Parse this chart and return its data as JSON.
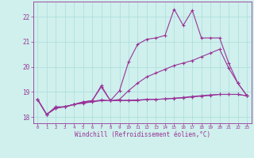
{
  "xlabel": "Windchill (Refroidissement éolien,°C)",
  "bg_color": "#cff0ec",
  "grid_color": "#aadddd",
  "line_color": "#993399",
  "xlim": [
    -0.5,
    23.5
  ],
  "ylim": [
    17.75,
    22.6
  ],
  "xticks": [
    0,
    1,
    2,
    3,
    4,
    5,
    6,
    7,
    8,
    9,
    10,
    11,
    12,
    13,
    14,
    15,
    16,
    17,
    18,
    19,
    20,
    21,
    22,
    23
  ],
  "yticks": [
    18,
    19,
    20,
    21,
    22
  ],
  "line1_x": [
    0,
    1,
    2,
    3,
    4,
    5,
    6,
    7,
    8,
    9,
    10,
    11,
    12,
    13,
    14,
    15,
    16,
    17,
    18,
    19,
    20,
    21,
    22,
    23
  ],
  "line1_y": [
    18.7,
    18.1,
    18.4,
    18.4,
    18.5,
    18.55,
    18.6,
    18.65,
    18.65,
    18.65,
    18.65,
    18.65,
    18.7,
    18.7,
    18.72,
    18.75,
    18.78,
    18.82,
    18.85,
    18.88,
    18.9,
    18.9,
    18.9,
    18.85
  ],
  "line2_x": [
    0,
    1,
    2,
    3,
    4,
    5,
    6,
    7,
    8,
    9,
    10,
    11,
    12,
    13,
    14,
    15,
    16,
    17,
    18,
    19,
    20,
    21,
    22,
    23
  ],
  "line2_y": [
    18.7,
    18.1,
    18.4,
    18.4,
    18.5,
    18.6,
    18.65,
    19.2,
    18.65,
    18.7,
    19.05,
    19.35,
    19.6,
    19.75,
    19.9,
    20.05,
    20.15,
    20.25,
    20.4,
    20.55,
    20.7,
    19.95,
    19.35,
    18.85
  ],
  "line3_x": [
    0,
    1,
    2,
    3,
    4,
    5,
    6,
    7,
    8,
    9,
    10,
    11,
    12,
    13,
    14,
    15,
    16,
    17,
    18,
    19,
    20,
    21,
    22,
    23
  ],
  "line3_y": [
    18.7,
    18.1,
    18.35,
    18.42,
    18.5,
    18.6,
    18.65,
    19.25,
    18.65,
    19.05,
    20.2,
    20.9,
    21.1,
    21.15,
    21.25,
    22.3,
    21.65,
    22.25,
    21.15,
    21.15,
    21.15,
    20.15,
    19.35,
    18.85
  ],
  "line4_x": [
    0,
    1,
    2,
    3,
    4,
    5,
    6,
    7,
    8,
    9,
    10,
    11,
    12,
    13,
    14,
    15,
    16,
    17,
    18,
    19,
    20,
    21,
    22,
    23
  ],
  "line4_y": [
    18.7,
    18.1,
    18.35,
    18.4,
    18.5,
    18.56,
    18.62,
    18.68,
    18.65,
    18.66,
    18.67,
    18.68,
    18.7,
    18.7,
    18.72,
    18.74,
    18.76,
    18.8,
    18.83,
    18.86,
    18.9,
    18.9,
    18.9,
    18.84
  ]
}
